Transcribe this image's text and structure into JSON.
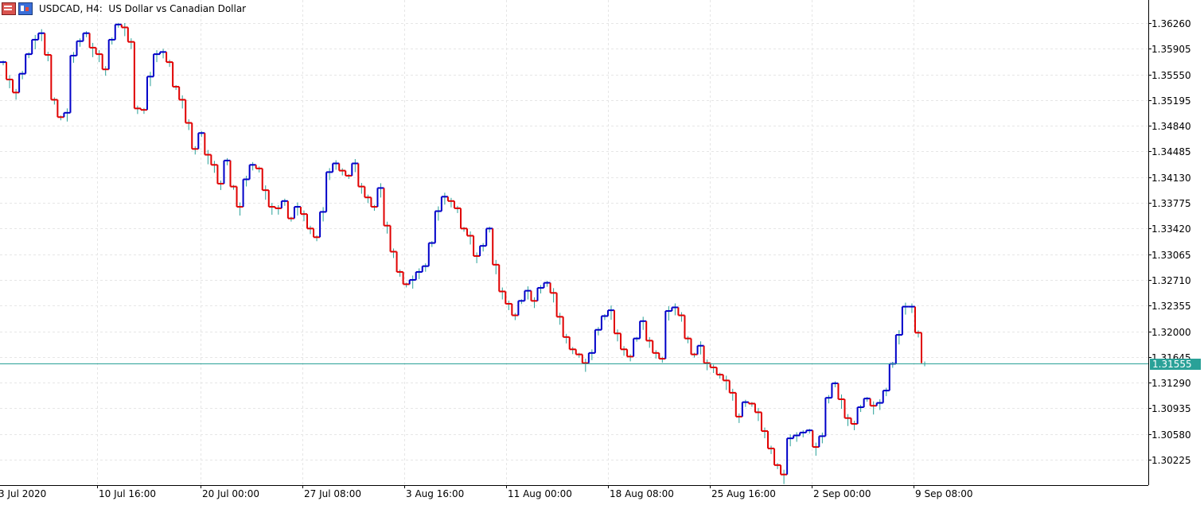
{
  "header": {
    "title": "USDCAD, H4:  US Dollar vs Canadian Dollar",
    "icons": [
      "window-grid-icon",
      "chart-bars-icon"
    ]
  },
  "colors": {
    "bull": "#0000c8",
    "bear": "#e00000",
    "wick": "#2aa198",
    "current_line": "#2aa198",
    "grid": "#e6e6e6",
    "axis": "#000000"
  },
  "current_price": "1.31555",
  "price_axis": {
    "labels": [
      "1.36260",
      "1.35905",
      "1.35550",
      "1.35195",
      "1.34840",
      "1.34485",
      "1.34130",
      "1.33775",
      "1.33420",
      "1.33065",
      "1.32710",
      "1.32355",
      "1.32000",
      "1.31645",
      "1.31290",
      "1.30935",
      "1.30580",
      "1.30225"
    ]
  },
  "time_axis": {
    "labels": [
      "3 Jul 2020",
      "10 Jul 16:00",
      "20 Jul 00:00",
      "27 Jul 08:00",
      "3 Aug 16:00",
      "11 Aug 00:00",
      "18 Aug 08:00",
      "25 Aug 16:00",
      "2 Sep 00:00",
      "9 Sep 08:00"
    ]
  },
  "chart_data": {
    "type": "line",
    "symbol": "USDCAD",
    "timeframe": "H4",
    "ylim": [
      1.3003,
      1.3648
    ],
    "grid": true,
    "series": [
      {
        "name": "USDCAD",
        "values": [
          1.3572,
          1.3548,
          1.353,
          1.3556,
          1.3583,
          1.3603,
          1.3612,
          1.3582,
          1.352,
          1.3496,
          1.3502,
          1.3581,
          1.3601,
          1.3612,
          1.3592,
          1.3583,
          1.3562,
          1.3603,
          1.3624,
          1.362,
          1.36,
          1.3508,
          1.3506,
          1.3552,
          1.3583,
          1.3586,
          1.3572,
          1.3538,
          1.352,
          1.3488,
          1.3452,
          1.3474,
          1.3444,
          1.343,
          1.3404,
          1.3436,
          1.34,
          1.3372,
          1.341,
          1.343,
          1.3425,
          1.3395,
          1.3372,
          1.337,
          1.338,
          1.3356,
          1.3372,
          1.3362,
          1.3342,
          1.333,
          1.3365,
          1.342,
          1.3432,
          1.3422,
          1.3415,
          1.3432,
          1.34,
          1.3385,
          1.3372,
          1.3398,
          1.3346,
          1.331,
          1.3282,
          1.3265,
          1.3271,
          1.3282,
          1.329,
          1.3322,
          1.3366,
          1.3386,
          1.338,
          1.337,
          1.3342,
          1.3332,
          1.3304,
          1.3318,
          1.3342,
          1.3292,
          1.3255,
          1.3238,
          1.3222,
          1.3242,
          1.3256,
          1.3242,
          1.326,
          1.3267,
          1.3253,
          1.322,
          1.3192,
          1.3175,
          1.3168,
          1.3156,
          1.317,
          1.3202,
          1.3221,
          1.3229,
          1.3197,
          1.3175,
          1.3165,
          1.319,
          1.3214,
          1.3187,
          1.317,
          1.3162,
          1.3228,
          1.3233,
          1.3222,
          1.319,
          1.3168,
          1.318,
          1.3156,
          1.315,
          1.314,
          1.3132,
          1.3115,
          1.3082,
          1.3102,
          1.31,
          1.3088,
          1.3062,
          1.3038,
          1.3015,
          1.3002,
          1.3052,
          1.3056,
          1.306,
          1.3063,
          1.304,
          1.3055,
          1.3108,
          1.3128,
          1.3106,
          1.308,
          1.3072,
          1.3095,
          1.3107,
          1.3097,
          1.3101,
          1.3118,
          1.3155,
          1.3195,
          1.3234,
          1.3234,
          1.3198,
          1.3156
        ]
      }
    ]
  }
}
